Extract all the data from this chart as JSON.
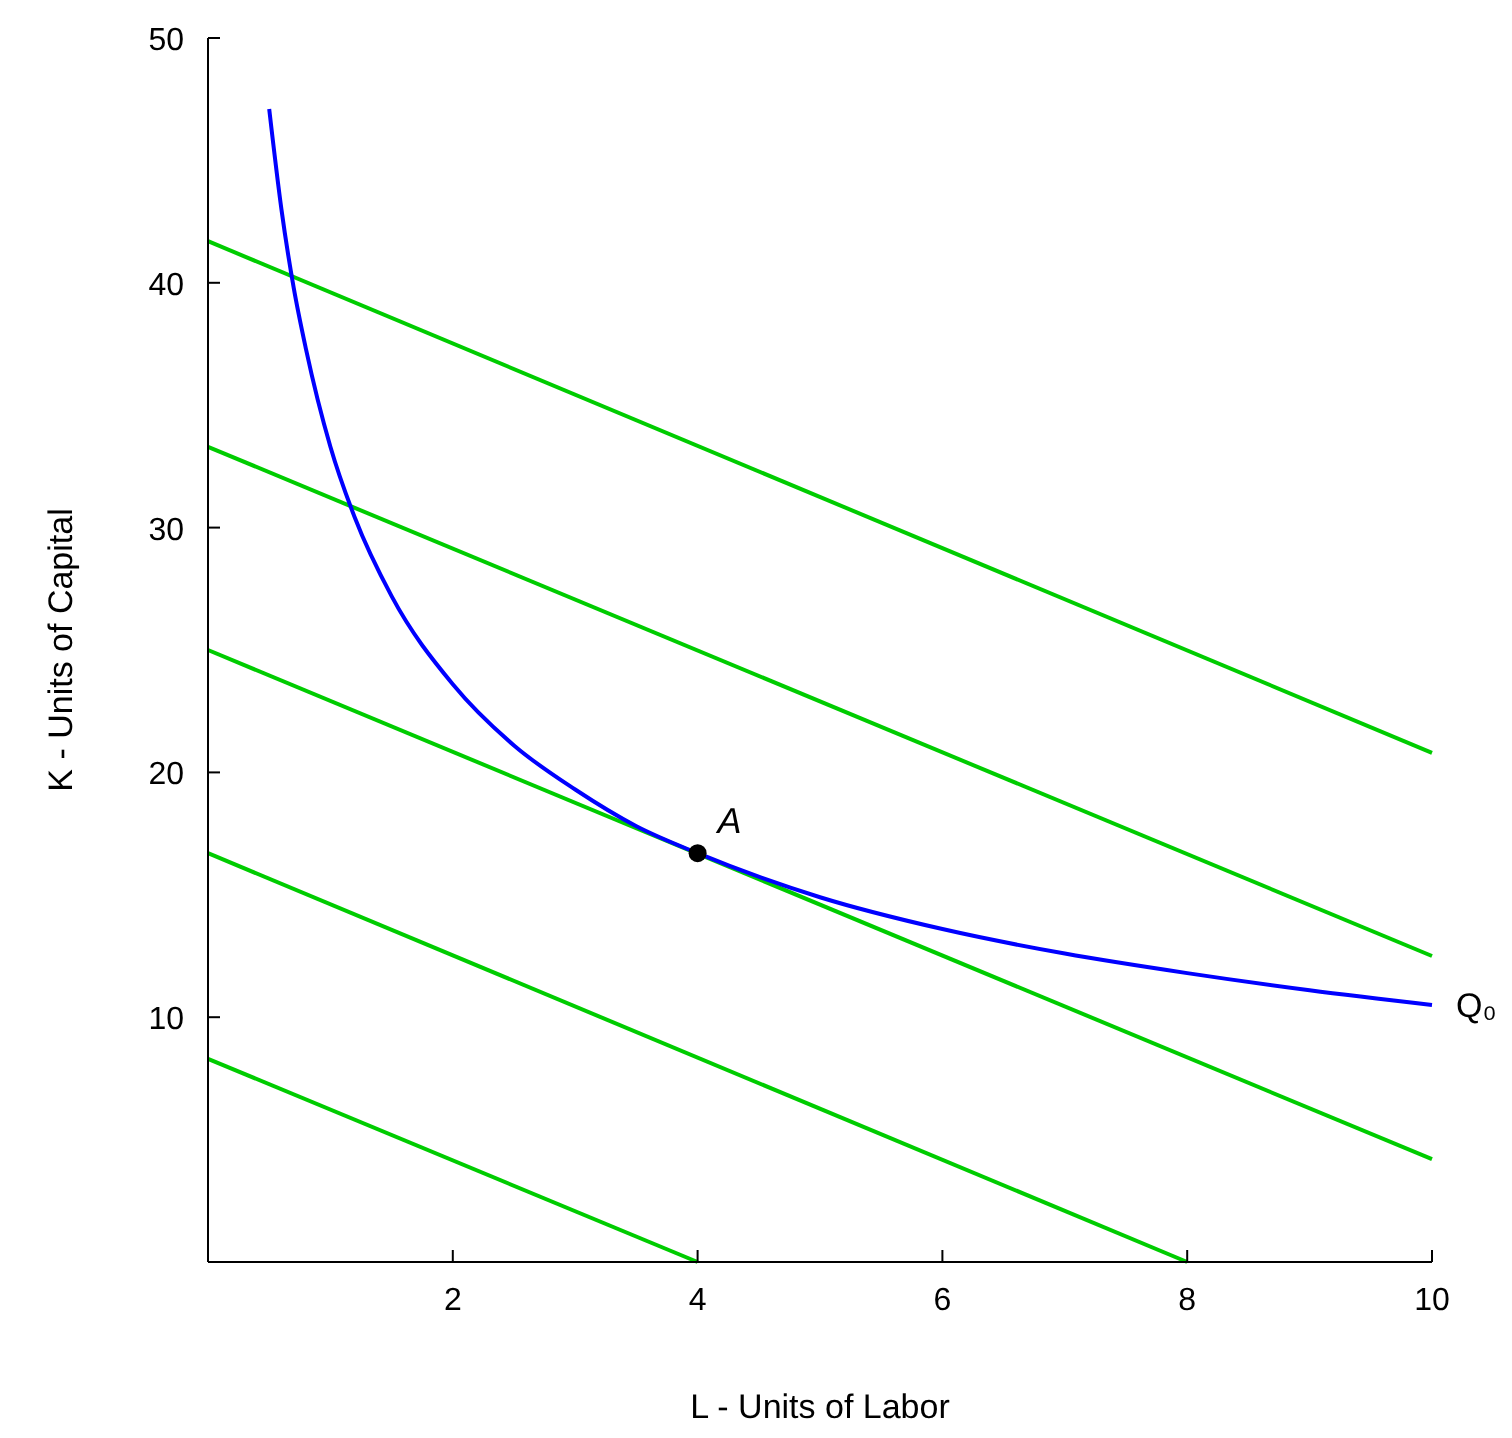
{
  "chart_data": {
    "type": "line",
    "xlabel": "L - Units of Labor",
    "ylabel": "K - Units of Capital",
    "xlim": [
      0,
      10
    ],
    "ylim": [
      0,
      50
    ],
    "xticks": [
      2,
      4,
      6,
      8,
      10
    ],
    "yticks": [
      10,
      20,
      30,
      40,
      50
    ],
    "line_style": "solid",
    "series": [
      {
        "color": "#00cc00",
        "x": [
          0,
          4
        ],
        "values": [
          8.3,
          0
        ]
      },
      {
        "color": "#00cc00",
        "x": [
          0,
          8
        ],
        "values": [
          16.7,
          0
        ]
      },
      {
        "color": "#00cc00",
        "x": [
          0,
          10
        ],
        "values": [
          25,
          4.2
        ]
      },
      {
        "color": "#00cc00",
        "x": [
          0,
          10
        ],
        "values": [
          33.3,
          12.5
        ]
      },
      {
        "color": "#00cc00",
        "x": [
          0,
          10
        ],
        "values": [
          41.7,
          20.8
        ]
      },
      {
        "name": "Q₀",
        "color": "#0000ff",
        "x": [
          0.5,
          0.6,
          0.7,
          0.8,
          1,
          1.2,
          1.5,
          2,
          2.5,
          3,
          3.5,
          4,
          5,
          6,
          7,
          8,
          9,
          10
        ],
        "values": [
          47.1,
          43,
          39.8,
          37.3,
          33.3,
          30.4,
          27.2,
          23.6,
          21.1,
          19.3,
          17.8,
          16.7,
          14.9,
          13.6,
          12.6,
          11.8,
          11.1,
          10.5
        ]
      },
      {
        "type": "scatter",
        "marker": "circle",
        "color": "#000000",
        "x": [
          4
        ],
        "values": [
          16.7
        ]
      }
    ],
    "annotations": [
      {
        "text": "A",
        "x": 4,
        "y": 16.7
      }
    ]
  }
}
